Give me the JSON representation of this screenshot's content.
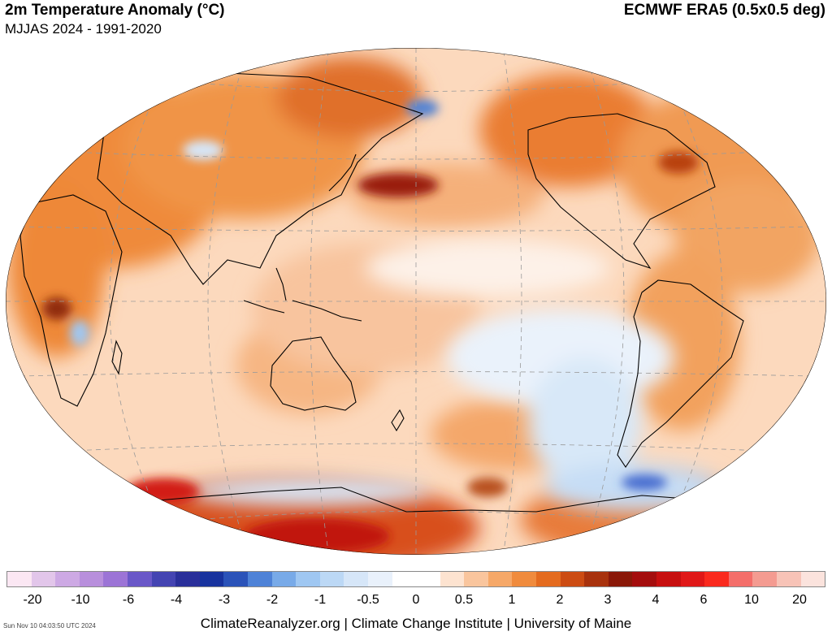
{
  "header": {
    "title": "2m Temperature Anomaly (°C)",
    "subtitle": "MJJAS 2024 - 1991-2020",
    "source": "ECMWF ERA5 (0.5x0.5 deg)"
  },
  "map": {
    "projection": "Winkel-tripel",
    "center": "Pacific",
    "colors": {
      "ocean_warm": "#fcd5b5",
      "land_warm": "#f08c3c",
      "hot": "#b31010",
      "cool": "#a8cdf0",
      "cold": "#3f62c8",
      "coast": "#000000",
      "grid": "#9a9a9a"
    }
  },
  "colorbar": {
    "colors": [
      "#fbe7f3",
      "#e2c6ea",
      "#cda9e4",
      "#b88fdc",
      "#9c74d6",
      "#6a58c8",
      "#4444b2",
      "#2a2f9a",
      "#18339e",
      "#2b53b9",
      "#4e82d7",
      "#78aae8",
      "#9fc7f2",
      "#bcd8f5",
      "#d6e6f8",
      "#e9f1fb",
      "#ffffff",
      "#ffffff",
      "#fde3d0",
      "#f9c59d",
      "#f6a868",
      "#f08b3d",
      "#e46b1f",
      "#cc4c13",
      "#a8320d",
      "#8a1808",
      "#a40d0d",
      "#c70f0f",
      "#e01818",
      "#fa2a1e",
      "#f46e6a",
      "#f49b91",
      "#f7c3b7",
      "#fbe3dd"
    ],
    "tick_labels": [
      "-20",
      "-10",
      "-6",
      "-4",
      "-3",
      "-2",
      "-1",
      "-0.5",
      "0",
      "0.5",
      "1",
      "2",
      "3",
      "4",
      "6",
      "10",
      "20"
    ]
  },
  "footer": {
    "credit": "ClimateReanalyzer.org | Climate Change Institute | University of Maine",
    "timestamp": "Sun Nov 10 04:03:50 UTC 2024"
  }
}
